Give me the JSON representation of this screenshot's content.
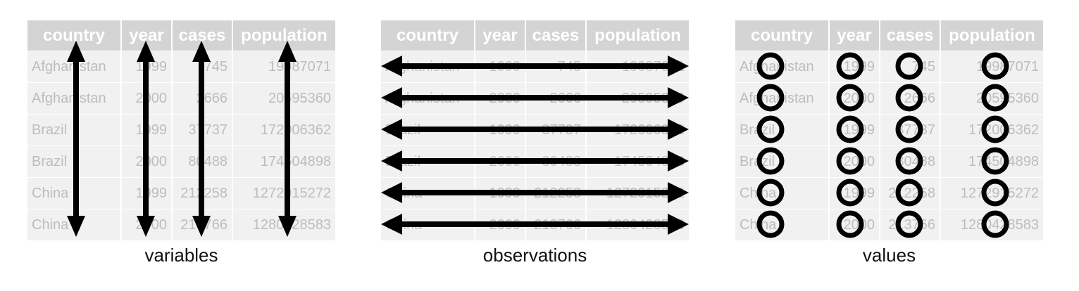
{
  "table": {
    "headers": [
      "country",
      "year",
      "cases",
      "population"
    ],
    "rows": [
      [
        "Afghanistan",
        "1999",
        "745",
        "19987071"
      ],
      [
        "Afghanistan",
        "2000",
        "2666",
        "20595360"
      ],
      [
        "Brazil",
        "1999",
        "37737",
        "172006362"
      ],
      [
        "Brazil",
        "2000",
        "80488",
        "174504898"
      ],
      [
        "China",
        "1999",
        "212258",
        "1272915272"
      ],
      [
        "China",
        "2000",
        "213766",
        "1280428583"
      ]
    ]
  },
  "captions": {
    "variables": "variables",
    "observations": "observations",
    "values": "values"
  },
  "colors": {
    "header_bg": "#d4d4d4",
    "header_text": "#ffffff",
    "cell_bg": "#f1f1f1",
    "cell_text": "#bdbdbd",
    "mark": "#000000"
  },
  "icons": {
    "variables": "double-headed-vertical-arrow",
    "observations": "double-headed-horizontal-arrow",
    "values": "circle-outline"
  }
}
